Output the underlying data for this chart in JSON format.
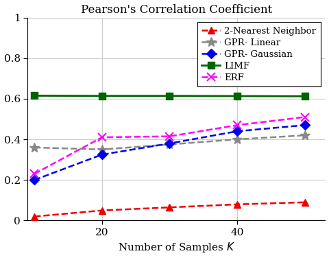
{
  "title": "Pearson's Correlation Coefficient",
  "xlabel": "Number of Samples $K$",
  "xlim": [
    9,
    53
  ],
  "ylim": [
    0,
    1.0
  ],
  "xticks": [
    20,
    40
  ],
  "yticks": [
    0,
    0.2,
    0.4,
    0.6,
    0.8,
    1
  ],
  "ytick_labels": [
    "0",
    "0.2",
    "0.4",
    "0.6",
    "0.8",
    "1"
  ],
  "x": [
    10,
    20,
    30,
    40,
    50
  ],
  "series": {
    "2-Nearest Neighbor": {
      "y": [
        0.02,
        0.05,
        0.065,
        0.08,
        0.09
      ],
      "color": "#EE0000",
      "marker": "^",
      "markersize": 7,
      "linestyle": "--",
      "linewidth": 1.8,
      "markerfacecolor": "#EE0000"
    },
    "GPR- Linear": {
      "y": [
        0.36,
        0.35,
        0.375,
        0.4,
        0.42
      ],
      "color": "#888888",
      "marker": "*",
      "markersize": 10,
      "linestyle": "--",
      "linewidth": 1.8,
      "markerfacecolor": "#888888"
    },
    "GPR- Gaussian": {
      "y": [
        0.2,
        0.325,
        0.38,
        0.44,
        0.47
      ],
      "color": "#0000EE",
      "marker": "D",
      "markersize": 7,
      "linestyle": "--",
      "linewidth": 1.8,
      "markerfacecolor": "#0000EE"
    },
    "LIMF": {
      "y": [
        0.615,
        0.614,
        0.614,
        0.613,
        0.612
      ],
      "color": "#006400",
      "marker": "s",
      "markersize": 7,
      "linestyle": "-",
      "linewidth": 2.0,
      "markerfacecolor": "#006400"
    },
    "ERF": {
      "y": [
        0.23,
        0.41,
        0.415,
        0.47,
        0.51
      ],
      "color": "#FF00FF",
      "marker": "x",
      "markersize": 8,
      "linestyle": "--",
      "linewidth": 1.8,
      "markerfacecolor": "none"
    }
  },
  "legend_order": [
    "2-Nearest Neighbor",
    "GPR- Linear",
    "GPR- Gaussian",
    "LIMF",
    "ERF"
  ],
  "title_fontsize": 12,
  "label_fontsize": 11,
  "tick_fontsize": 11,
  "legend_fontsize": 9.5,
  "background_color": "#ffffff"
}
